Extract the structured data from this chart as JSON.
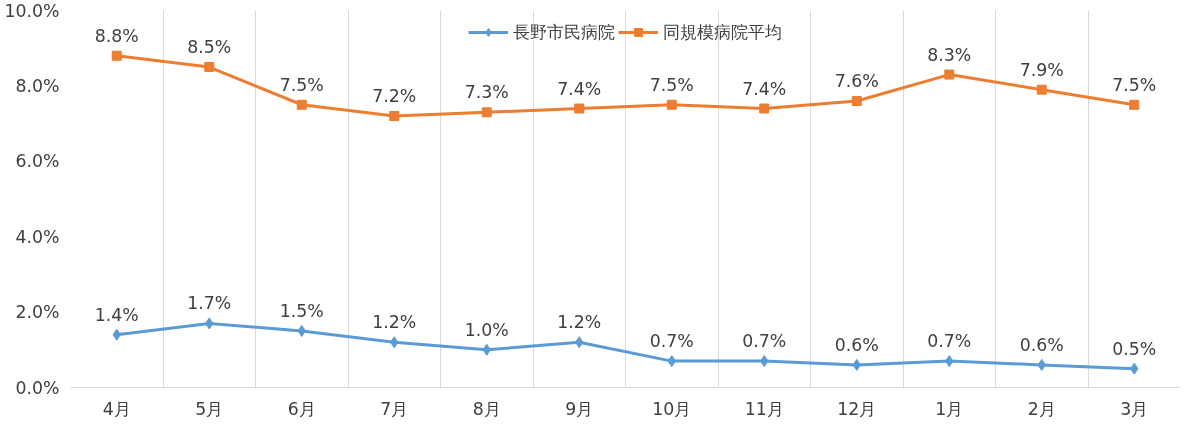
{
  "chart_data": {
    "type": "line",
    "categories": [
      "4月",
      "5月",
      "6月",
      "7月",
      "8月",
      "9月",
      "10月",
      "11月",
      "12月",
      "1月",
      "2月",
      "3月"
    ],
    "series": [
      {
        "name": "長野市民病院",
        "color": "#5b9bd5",
        "marker": "diamond",
        "values": [
          1.4,
          1.7,
          1.5,
          1.2,
          1.0,
          1.2,
          0.7,
          0.7,
          0.6,
          0.7,
          0.6,
          0.5
        ],
        "value_labels": [
          "1.4%",
          "1.7%",
          "1.5%",
          "1.2%",
          "1.0%",
          "1.2%",
          "0.7%",
          "0.7%",
          "0.6%",
          "0.7%",
          "0.6%",
          "0.5%"
        ]
      },
      {
        "name": "同規模病院平均",
        "color": "#ed7d31",
        "marker": "square",
        "values": [
          8.8,
          8.5,
          7.5,
          7.2,
          7.3,
          7.4,
          7.5,
          7.4,
          7.6,
          8.3,
          7.9,
          7.5
        ],
        "value_labels": [
          "8.8%",
          "8.5%",
          "7.5%",
          "7.2%",
          "7.3%",
          "7.4%",
          "7.5%",
          "7.4%",
          "7.6%",
          "8.3%",
          "7.9%",
          "7.5%"
        ]
      }
    ],
    "ylim": [
      0,
      10
    ],
    "yticks": [
      {
        "value": 0,
        "label": "0.0%"
      },
      {
        "value": 2,
        "label": "2.0%"
      },
      {
        "value": 4,
        "label": "4.0%"
      },
      {
        "value": 6,
        "label": "6.0%"
      },
      {
        "value": 8,
        "label": "8.0%"
      },
      {
        "value": 10,
        "label": "10.0%"
      }
    ],
    "grid": "x",
    "legend": "top",
    "line_style": "solid"
  }
}
